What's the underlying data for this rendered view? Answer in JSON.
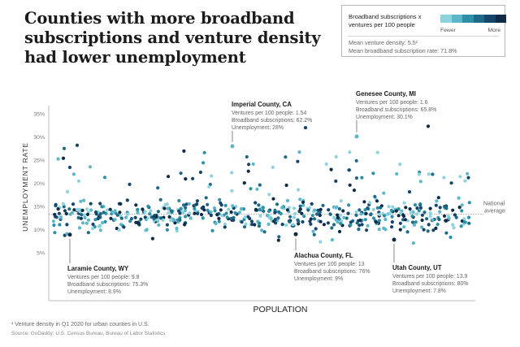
{
  "title": "Counties with more broadband subscriptions and venture density had lower unemployment",
  "legend": {
    "title": "Broadband subscriptions x ventures per 100 people",
    "colors": [
      "#8dd3de",
      "#5cb8c9",
      "#2f8fa6",
      "#1d6a86",
      "#15456a",
      "#0f2a47"
    ],
    "fewer": "Fewer",
    "more": "More",
    "mean_venture_density": "Mean venture density: 5.5¹",
    "mean_broadband": "Mean broadband subscription rate: 71.8%"
  },
  "footnote": "¹ Venture density in Q1 2020 for urban counties in U.S.",
  "source": "Source: GoDaddy; U.S. Census Bureau, Bureau of Labor Statistics",
  "chart_data": {
    "type": "scatter",
    "xlabel": "POPULATION",
    "ylabel": "UNEMPLOYMENT RATE",
    "ylim": [
      0,
      38
    ],
    "yticks": [
      "5%",
      "10%",
      "15%",
      "20%",
      "25%",
      "30%",
      "35%"
    ],
    "y_tick_values": [
      5,
      10,
      15,
      20,
      25,
      30,
      35
    ],
    "x_axis_values_shown": false,
    "grid": false,
    "national_average": {
      "label": "National average",
      "value": 13.3
    },
    "point_count": 600,
    "y_distribution": {
      "center": 13,
      "spread": 2.8,
      "min": 5,
      "max": 32.5
    },
    "annotations": [
      {
        "name": "Imperial County, CA",
        "lines": [
          "Ventures per 100 people: 1.54",
          "Broadband subscriptions: 62.2%",
          "Unemployment: 28%"
        ],
        "y": 28
      },
      {
        "name": "Genesee County, MI",
        "lines": [
          "Ventures per 100 people: 1.6",
          "Broadband subscriptions: 65.8%",
          "Unemployment: 30.1%"
        ],
        "y": 30.1
      },
      {
        "name": "Laramie County, WY",
        "lines": [
          "Ventures per 100 people: 9.8",
          "Broadband subscriptions: 75.3%",
          "Unemployment: 8.9%"
        ],
        "y": 8.9
      },
      {
        "name": "Alachua County, FL",
        "lines": [
          "Ventures per 100 people: 13",
          "Broadband subscriptions: 76%",
          "Unemployment: 9%"
        ],
        "y": 9
      },
      {
        "name": "Utah County, UT",
        "lines": [
          "Ventures per 100 people: 13.9",
          "Broadband subscriptions: 80%",
          "Unemployment: 7.8%"
        ],
        "y": 7.8
      }
    ]
  }
}
